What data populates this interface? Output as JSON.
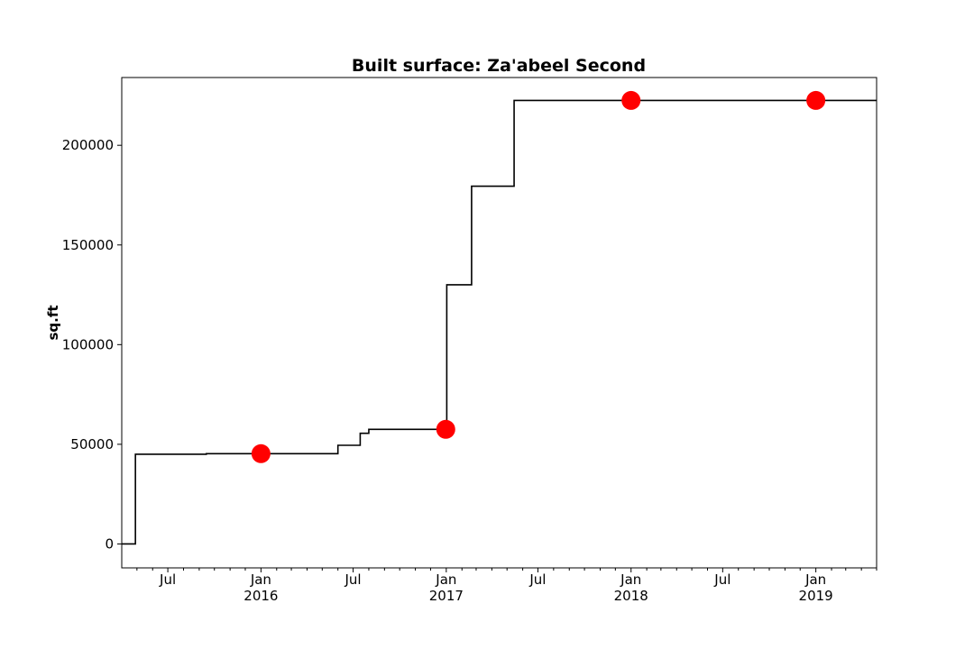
{
  "chart_data": {
    "type": "line",
    "title": "Built surface: Za'abeel Second",
    "xlabel": "",
    "ylabel": "sq.ft",
    "drawstyle": "steps-post",
    "xlim": [
      "2015-04-01",
      "2019-05-01"
    ],
    "ylim": [
      -12000,
      234000
    ],
    "y_ticks": [
      0,
      50000,
      100000,
      150000,
      200000
    ],
    "x_ticks_major": [
      {
        "date": "2015-07-01",
        "label": "Jul"
      },
      {
        "date": "2016-01-01",
        "label": "Jan\n2016"
      },
      {
        "date": "2016-07-01",
        "label": "Jul"
      },
      {
        "date": "2017-01-01",
        "label": "Jan\n2017"
      },
      {
        "date": "2017-07-01",
        "label": "Jul"
      },
      {
        "date": "2018-01-01",
        "label": "Jan\n2018"
      },
      {
        "date": "2018-07-01",
        "label": "Jul"
      },
      {
        "date": "2019-01-01",
        "label": "Jan\n2019"
      }
    ],
    "x_ticks_minor": [
      "2015-05-01",
      "2015-06-01",
      "2015-08-01",
      "2015-09-01",
      "2015-10-01",
      "2015-11-01",
      "2015-12-01",
      "2016-02-01",
      "2016-03-01",
      "2016-04-01",
      "2016-05-01",
      "2016-06-01",
      "2016-08-01",
      "2016-09-01",
      "2016-10-01",
      "2016-11-01",
      "2016-12-01",
      "2017-02-01",
      "2017-03-01",
      "2017-04-01",
      "2017-05-01",
      "2017-06-01",
      "2017-08-01",
      "2017-09-01",
      "2017-10-01",
      "2017-11-01",
      "2017-12-01",
      "2018-02-01",
      "2018-03-01",
      "2018-04-01",
      "2018-05-01",
      "2018-06-01",
      "2018-08-01",
      "2018-09-01",
      "2018-10-01",
      "2018-11-01",
      "2018-12-01",
      "2019-02-01",
      "2019-03-01",
      "2019-04-01",
      "2019-05-01"
    ],
    "series": [
      {
        "name": "",
        "color": "#000000",
        "points": [
          {
            "x": "2015-04-01",
            "y": 0
          },
          {
            "x": "2015-04-28",
            "y": 45000
          },
          {
            "x": "2015-09-15",
            "y": 45300
          },
          {
            "x": "2016-06-01",
            "y": 49500
          },
          {
            "x": "2016-07-15",
            "y": 55500
          },
          {
            "x": "2016-08-01",
            "y": 57500
          },
          {
            "x": "2017-01-02",
            "y": 130000
          },
          {
            "x": "2017-02-20",
            "y": 179500
          },
          {
            "x": "2017-05-15",
            "y": 222500
          },
          {
            "x": "2019-05-01",
            "y": 222500
          }
        ]
      },
      {
        "name": "",
        "color": "#ff0000",
        "marker": "circle",
        "points": [
          {
            "x": "2016-01-01",
            "y": 45300
          },
          {
            "x": "2016-12-31",
            "y": 57500
          },
          {
            "x": "2018-01-01",
            "y": 222500
          },
          {
            "x": "2019-01-01",
            "y": 222500
          }
        ]
      }
    ]
  }
}
